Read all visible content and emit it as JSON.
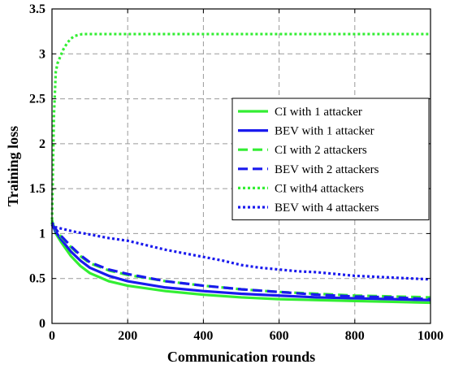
{
  "chart_data": {
    "type": "line",
    "xlabel": "Communication rounds",
    "ylabel": "Training loss",
    "xlim": [
      0,
      1000
    ],
    "ylim": [
      0,
      3.5
    ],
    "xticks": [
      0,
      200,
      400,
      600,
      800,
      1000
    ],
    "yticks": [
      0,
      0.5,
      1,
      1.5,
      2,
      2.5,
      3,
      3.5
    ],
    "ytick_labels": [
      "0",
      "0.5",
      "1",
      "1.5",
      "2",
      "2.5",
      "3",
      "3.5"
    ],
    "grid": true,
    "legend_position": "right-center",
    "series": [
      {
        "name": "CI with 1 attacker",
        "color": "#33ee33",
        "style": "solid",
        "x": [
          0,
          10,
          25,
          50,
          75,
          100,
          150,
          200,
          300,
          400,
          500,
          600,
          700,
          800,
          900,
          1000
        ],
        "y": [
          1.15,
          1.0,
          0.9,
          0.75,
          0.64,
          0.56,
          0.47,
          0.42,
          0.36,
          0.32,
          0.29,
          0.27,
          0.26,
          0.25,
          0.24,
          0.23
        ]
      },
      {
        "name": "BEV with 1 attacker",
        "color": "#1a1aee",
        "style": "solid",
        "x": [
          0,
          10,
          25,
          50,
          75,
          100,
          150,
          200,
          300,
          400,
          500,
          600,
          700,
          800,
          900,
          1000
        ],
        "y": [
          1.1,
          1.02,
          0.93,
          0.8,
          0.7,
          0.62,
          0.53,
          0.47,
          0.4,
          0.36,
          0.33,
          0.31,
          0.29,
          0.28,
          0.27,
          0.26
        ]
      },
      {
        "name": "CI with 2 attackers",
        "color": "#33ee33",
        "style": "dashed",
        "x": [
          0,
          10,
          25,
          50,
          75,
          100,
          150,
          200,
          300,
          400,
          500,
          600,
          700,
          800,
          900,
          1000
        ],
        "y": [
          1.12,
          1.04,
          0.96,
          0.85,
          0.75,
          0.67,
          0.59,
          0.54,
          0.47,
          0.42,
          0.38,
          0.35,
          0.33,
          0.31,
          0.3,
          0.29
        ]
      },
      {
        "name": "BEV with 2 attackers",
        "color": "#1a1aee",
        "style": "dashed",
        "x": [
          0,
          10,
          25,
          50,
          75,
          100,
          150,
          200,
          300,
          400,
          500,
          600,
          700,
          800,
          900,
          1000
        ],
        "y": [
          1.1,
          1.05,
          0.97,
          0.86,
          0.76,
          0.68,
          0.6,
          0.55,
          0.47,
          0.42,
          0.38,
          0.35,
          0.32,
          0.3,
          0.29,
          0.27
        ]
      },
      {
        "name": "CI with4 attackers",
        "color": "#33ee33",
        "style": "dotted",
        "x": [
          0,
          5,
          10,
          15,
          20,
          25,
          30,
          40,
          50,
          60,
          80,
          100,
          200,
          300,
          400,
          500,
          600,
          700,
          800,
          900,
          1000
        ],
        "y": [
          1.1,
          2.3,
          2.8,
          2.9,
          2.95,
          3.0,
          3.05,
          3.12,
          3.17,
          3.2,
          3.22,
          3.22,
          3.22,
          3.22,
          3.22,
          3.22,
          3.22,
          3.22,
          3.22,
          3.22,
          3.22
        ]
      },
      {
        "name": "BEV with 4 attackers",
        "color": "#1a1aee",
        "style": "dotted",
        "x": [
          0,
          10,
          30,
          60,
          100,
          150,
          200,
          250,
          300,
          350,
          400,
          450,
          500,
          550,
          600,
          650,
          700,
          750,
          800,
          850,
          900,
          950,
          1000
        ],
        "y": [
          1.12,
          1.07,
          1.05,
          1.02,
          0.99,
          0.95,
          0.92,
          0.87,
          0.82,
          0.78,
          0.74,
          0.7,
          0.65,
          0.62,
          0.6,
          0.58,
          0.57,
          0.55,
          0.53,
          0.52,
          0.51,
          0.5,
          0.49
        ]
      }
    ]
  }
}
